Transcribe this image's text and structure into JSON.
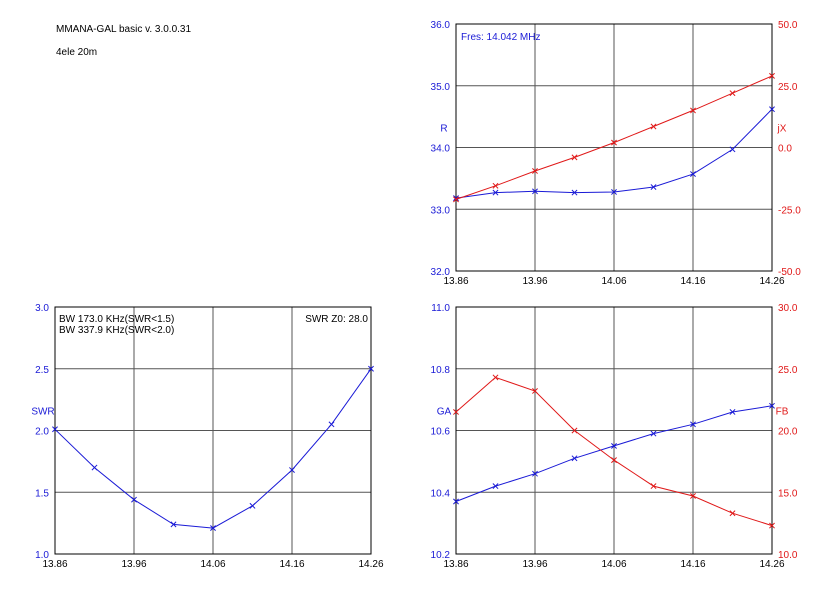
{
  "header": {
    "program": "MMANA-GAL basic   v. 3.0.0.31",
    "model": "4ele 20m"
  },
  "colors": {
    "blue": "#1a1ad6",
    "red": "#e01818",
    "grid": "#555555",
    "frame": "#000000"
  },
  "chart_data": [
    {
      "id": "impedance",
      "type": "line",
      "title": "",
      "annotation": "Fres: 14.042 MHz",
      "x": [
        13.86,
        13.91,
        13.96,
        14.01,
        14.06,
        14.11,
        14.16,
        14.21,
        14.26
      ],
      "xticks": [
        "13.86",
        "13.96",
        "14.06",
        "14.16",
        "14.26"
      ],
      "xlim": [
        13.86,
        14.26
      ],
      "left_axis": {
        "label": "R",
        "ylim": [
          32.0,
          36.0
        ],
        "ticks": [
          "32.0",
          "33.0",
          "34.0",
          "35.0",
          "36.0"
        ]
      },
      "right_axis": {
        "label": "jX",
        "ylim": [
          -50.0,
          50.0
        ],
        "ticks": [
          "-50.0",
          "-25.0",
          "0.0",
          "25.0",
          "50.0"
        ]
      },
      "series": [
        {
          "name": "R",
          "axis": "left",
          "color": "#1a1ad6",
          "values": [
            33.18,
            33.27,
            33.29,
            33.27,
            33.28,
            33.36,
            33.57,
            33.97,
            34.62
          ]
        },
        {
          "name": "jX",
          "axis": "right",
          "color": "#e01818",
          "values": [
            -21.0,
            -15.5,
            -9.5,
            -4.0,
            2.0,
            8.5,
            15.0,
            22.0,
            29.0
          ]
        }
      ],
      "grid": true
    },
    {
      "id": "swr",
      "type": "line",
      "title": "",
      "annotations": [
        "BW 173.0 KHz(SWR<1.5)",
        "BW 337.9 KHz(SWR<2.0)"
      ],
      "annotation_right": "SWR Z0: 28.0",
      "x": [
        13.86,
        13.91,
        13.96,
        14.01,
        14.06,
        14.11,
        14.16,
        14.21,
        14.26
      ],
      "xticks": [
        "13.86",
        "13.96",
        "14.06",
        "14.16",
        "14.26"
      ],
      "xlim": [
        13.86,
        14.26
      ],
      "left_axis": {
        "label": "SWR",
        "ylim": [
          1.0,
          3.0
        ],
        "ticks": [
          "1.0",
          "1.5",
          "2.0",
          "2.5",
          "3.0"
        ]
      },
      "series": [
        {
          "name": "SWR",
          "axis": "left",
          "color": "#1a1ad6",
          "values": [
            2.01,
            1.7,
            1.44,
            1.24,
            1.21,
            1.39,
            1.68,
            2.05,
            2.5
          ]
        }
      ],
      "grid": true
    },
    {
      "id": "gain_fb",
      "type": "line",
      "title": "",
      "x": [
        13.86,
        13.91,
        13.96,
        14.01,
        14.06,
        14.11,
        14.16,
        14.21,
        14.26
      ],
      "xticks": [
        "13.86",
        "13.96",
        "14.06",
        "14.16",
        "14.26"
      ],
      "xlim": [
        13.86,
        14.26
      ],
      "left_axis": {
        "label": "GA",
        "ylim": [
          10.2,
          11.0
        ],
        "ticks": [
          "10.2",
          "10.4",
          "10.6",
          "10.8",
          "11.0"
        ]
      },
      "right_axis": {
        "label": "FB",
        "ylim": [
          10.0,
          30.0
        ],
        "ticks": [
          "10.0",
          "15.0",
          "20.0",
          "25.0",
          "30.0"
        ]
      },
      "series": [
        {
          "name": "GA",
          "axis": "left",
          "color": "#1a1ad6",
          "values": [
            10.37,
            10.42,
            10.46,
            10.51,
            10.55,
            10.59,
            10.62,
            10.66,
            10.68
          ]
        },
        {
          "name": "FB",
          "axis": "right",
          "color": "#e01818",
          "values": [
            21.5,
            24.3,
            23.2,
            20.0,
            17.6,
            15.5,
            14.7,
            13.3,
            12.3
          ]
        }
      ],
      "grid": true
    }
  ]
}
